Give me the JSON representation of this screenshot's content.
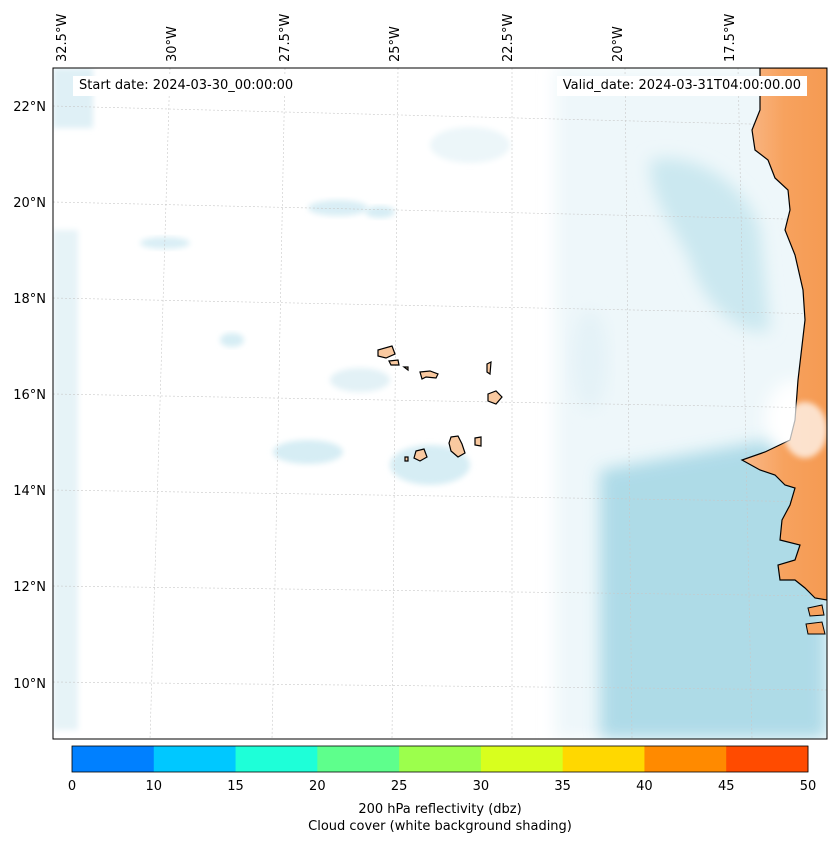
{
  "map": {
    "start_date": "Start date: 2024-03-30_00:00:00",
    "valid_date": "Valid_date: 2024-03-31T04:00:00.00",
    "lon_labels": [
      "32.5°W",
      "30°W",
      "27.5°W",
      "25°W",
      "22.5°W",
      "20°W",
      "17.5°W"
    ],
    "lat_labels": [
      "22°N",
      "20°N",
      "18°N",
      "16°N",
      "14°N",
      "12°N",
      "10°N"
    ],
    "features": {
      "islands": "Cape Verde Islands",
      "coast": "West African coast"
    },
    "colors": {
      "cloud": "#a8d8e6",
      "land": "#f7a25e",
      "coastline": "#000000",
      "grid": "#bbbbbb"
    }
  },
  "colorbar": {
    "ticks": [
      "0",
      "10",
      "15",
      "20",
      "25",
      "30",
      "35",
      "40",
      "45",
      "50"
    ],
    "colors": [
      "#0080ff",
      "#00c8ff",
      "#1effd8",
      "#5eff8c",
      "#9cff4c",
      "#d8ff1e",
      "#ffd800",
      "#ff8a00",
      "#ff4b00"
    ],
    "label_line1": "200 hPa reflectivity (dbz)",
    "label_line2": "Cloud cover (white background shading)"
  }
}
